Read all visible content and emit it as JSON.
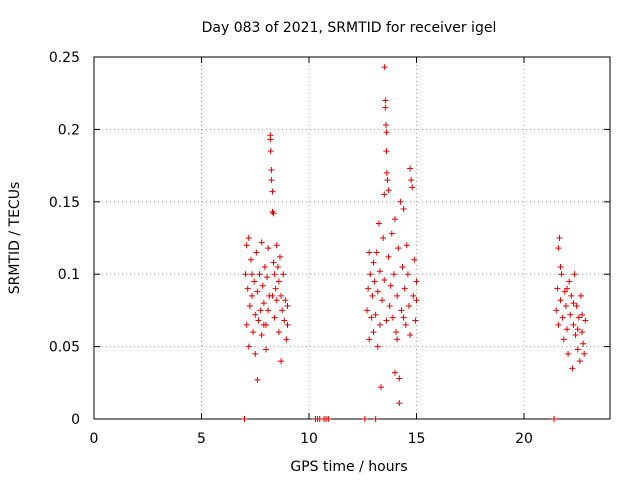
{
  "chart_data": {
    "type": "scatter",
    "title": "Day 083 of 2021, SRMTID for receiver igel",
    "xlabel": "GPS time / hours",
    "ylabel": "SRMTID / TECUs",
    "xlim": [
      0,
      24
    ],
    "ylim": [
      0,
      0.25
    ],
    "xticks": [
      0,
      5,
      10,
      15,
      20
    ],
    "xtick_labels": [
      "0",
      "5",
      "10",
      "15",
      "20"
    ],
    "yticks": [
      0,
      0.05,
      0.1,
      0.15,
      0.2,
      0.25
    ],
    "ytick_labels": [
      "0",
      "0.05",
      "0.1",
      "0.15",
      "0.2",
      "0.25"
    ],
    "grid": true,
    "marker": "+",
    "color": "#e00000",
    "series": [
      {
        "points": [
          [
            7.0,
            0.0
          ],
          [
            10.3,
            0.0
          ],
          [
            10.4,
            0.0
          ],
          [
            10.5,
            0.0
          ],
          [
            10.7,
            0.0
          ],
          [
            10.8,
            0.0
          ],
          [
            10.9,
            0.0
          ],
          [
            12.6,
            0.0
          ],
          [
            13.1,
            0.0
          ],
          [
            21.4,
            0.0
          ],
          [
            7.05,
            0.1
          ],
          [
            7.1,
            0.12
          ],
          [
            7.1,
            0.065
          ],
          [
            7.15,
            0.09
          ],
          [
            7.2,
            0.125
          ],
          [
            7.2,
            0.05
          ],
          [
            7.25,
            0.078
          ],
          [
            7.3,
            0.11
          ],
          [
            7.35,
            0.085
          ],
          [
            7.4,
            0.06
          ],
          [
            7.45,
            0.095
          ],
          [
            7.5,
            0.072
          ],
          [
            7.5,
            0.045
          ],
          [
            7.55,
            0.115
          ],
          [
            7.6,
            0.027
          ],
          [
            7.6,
            0.088
          ],
          [
            7.65,
            0.068
          ],
          [
            7.7,
            0.1
          ],
          [
            7.75,
            0.075
          ],
          [
            7.8,
            0.122
          ],
          [
            7.8,
            0.058
          ],
          [
            7.85,
            0.092
          ],
          [
            7.9,
            0.08
          ],
          [
            7.95,
            0.105
          ],
          [
            8.0,
            0.065
          ],
          [
            8.0,
            0.048
          ],
          [
            8.05,
            0.098
          ],
          [
            8.1,
            0.118
          ],
          [
            8.1,
            0.075
          ],
          [
            8.15,
            0.085
          ],
          [
            8.2,
            0.196
          ],
          [
            8.2,
            0.193
          ],
          [
            8.22,
            0.185
          ],
          [
            8.25,
            0.172
          ],
          [
            8.25,
            0.165
          ],
          [
            8.3,
            0.157
          ],
          [
            8.3,
            0.143
          ],
          [
            8.35,
            0.142
          ],
          [
            8.35,
            0.108
          ],
          [
            8.4,
            0.1
          ],
          [
            8.4,
            0.07
          ],
          [
            8.45,
            0.09
          ],
          [
            8.5,
            0.082
          ],
          [
            8.5,
            0.12
          ],
          [
            8.55,
            0.105
          ],
          [
            8.6,
            0.095
          ],
          [
            8.6,
            0.06
          ],
          [
            8.65,
            0.112
          ],
          [
            8.7,
            0.085
          ],
          [
            8.7,
            0.04
          ],
          [
            8.75,
            0.075
          ],
          [
            8.8,
            0.1
          ],
          [
            8.85,
            0.068
          ],
          [
            8.9,
            0.082
          ],
          [
            8.95,
            0.055
          ],
          [
            9.0,
            0.065
          ],
          [
            9.0,
            0.078
          ],
          [
            7.35,
            0.1
          ],
          [
            7.9,
            0.065
          ],
          [
            8.3,
            0.085
          ],
          [
            12.7,
            0.075
          ],
          [
            12.75,
            0.09
          ],
          [
            12.8,
            0.115
          ],
          [
            12.8,
            0.055
          ],
          [
            12.85,
            0.1
          ],
          [
            12.9,
            0.07
          ],
          [
            12.95,
            0.085
          ],
          [
            13.0,
            0.108
          ],
          [
            13.0,
            0.06
          ],
          [
            13.05,
            0.095
          ],
          [
            13.1,
            0.072
          ],
          [
            13.15,
            0.115
          ],
          [
            13.2,
            0.088
          ],
          [
            13.25,
            0.135
          ],
          [
            13.3,
            0.102
          ],
          [
            13.3,
            0.065
          ],
          [
            13.35,
            0.022
          ],
          [
            13.4,
            0.082
          ],
          [
            13.45,
            0.125
          ],
          [
            13.5,
            0.096
          ],
          [
            13.5,
            0.155
          ],
          [
            13.52,
            0.243
          ],
          [
            13.55,
            0.22
          ],
          [
            13.55,
            0.215
          ],
          [
            13.58,
            0.203
          ],
          [
            13.6,
            0.198
          ],
          [
            13.6,
            0.185
          ],
          [
            13.62,
            0.17
          ],
          [
            13.65,
            0.165
          ],
          [
            13.7,
            0.158
          ],
          [
            13.7,
            0.112
          ],
          [
            13.75,
            0.078
          ],
          [
            13.8,
            0.092
          ],
          [
            13.85,
            0.128
          ],
          [
            13.9,
            0.07
          ],
          [
            13.95,
            0.1
          ],
          [
            14.0,
            0.138
          ],
          [
            14.0,
            0.032
          ],
          [
            14.05,
            0.06
          ],
          [
            14.1,
            0.085
          ],
          [
            14.15,
            0.118
          ],
          [
            14.2,
            0.028
          ],
          [
            14.2,
            0.011
          ],
          [
            14.25,
            0.15
          ],
          [
            14.3,
            0.075
          ],
          [
            14.35,
            0.105
          ],
          [
            14.4,
            0.145
          ],
          [
            14.45,
            0.09
          ],
          [
            14.5,
            0.065
          ],
          [
            14.55,
            0.12
          ],
          [
            14.6,
            0.1
          ],
          [
            14.65,
            0.078
          ],
          [
            14.7,
            0.173
          ],
          [
            14.75,
            0.165
          ],
          [
            14.8,
            0.16
          ],
          [
            14.85,
            0.085
          ],
          [
            14.9,
            0.11
          ],
          [
            14.95,
            0.068
          ],
          [
            15.0,
            0.095
          ],
          [
            15.0,
            0.082
          ],
          [
            13.2,
            0.05
          ],
          [
            13.6,
            0.068
          ],
          [
            14.1,
            0.055
          ],
          [
            14.4,
            0.07
          ],
          [
            14.7,
            0.058
          ],
          [
            21.5,
            0.075
          ],
          [
            21.55,
            0.09
          ],
          [
            21.6,
            0.065
          ],
          [
            21.6,
            0.118
          ],
          [
            21.65,
            0.125
          ],
          [
            21.7,
            0.082
          ],
          [
            21.75,
            0.1
          ],
          [
            21.8,
            0.07
          ],
          [
            21.85,
            0.055
          ],
          [
            21.9,
            0.088
          ],
          [
            21.95,
            0.078
          ],
          [
            22.0,
            0.062
          ],
          [
            22.05,
            0.045
          ],
          [
            22.1,
            0.095
          ],
          [
            22.15,
            0.072
          ],
          [
            22.2,
            0.085
          ],
          [
            22.25,
            0.035
          ],
          [
            22.3,
            0.065
          ],
          [
            22.35,
            0.1
          ],
          [
            22.4,
            0.058
          ],
          [
            22.45,
            0.078
          ],
          [
            22.5,
            0.048
          ],
          [
            22.55,
            0.07
          ],
          [
            22.6,
            0.04
          ],
          [
            22.65,
            0.085
          ],
          [
            22.7,
            0.06
          ],
          [
            22.75,
            0.052
          ],
          [
            22.8,
            0.045
          ],
          [
            22.85,
            0.068
          ],
          [
            21.7,
            0.105
          ],
          [
            22.0,
            0.09
          ],
          [
            22.3,
            0.08
          ],
          [
            22.5,
            0.062
          ],
          [
            22.7,
            0.072
          ]
        ]
      }
    ]
  }
}
